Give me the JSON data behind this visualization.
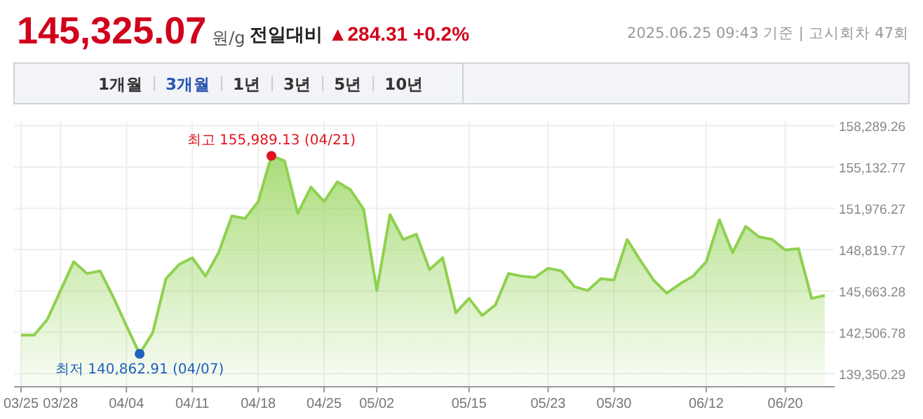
{
  "chart_data": {
    "type": "area",
    "title": "145,325.07원/g",
    "subtitle": "전일대비 ▲284.31 +0.2%",
    "categories": [
      "03/25",
      null,
      null,
      "03/28",
      null,
      null,
      null,
      null,
      "04/04",
      null,
      null,
      null,
      null,
      "04/11",
      null,
      null,
      null,
      null,
      "04/18",
      null,
      null,
      null,
      null,
      "04/25",
      null,
      null,
      null,
      "05/02",
      null,
      null,
      null,
      null,
      null,
      null,
      "05/15",
      null,
      null,
      null,
      null,
      null,
      "05/23",
      null,
      null,
      null,
      null,
      "05/30",
      null,
      null,
      null,
      null,
      null,
      null,
      "06/12",
      null,
      null,
      null,
      null,
      null,
      "06/20",
      null,
      null,
      null
    ],
    "series": [
      {
        "color": "#8fd14f",
        "values": [
          142300,
          142300,
          143500,
          145700,
          147900,
          147000,
          147200,
          145200,
          143000,
          140862.91,
          142500,
          146600,
          147700,
          148200,
          146800,
          148600,
          151400,
          151200,
          152500,
          155989.13,
          155600,
          151600,
          153600,
          152500,
          154000,
          153400,
          151900,
          145700,
          151500,
          149600,
          150000,
          147300,
          148200,
          144000,
          145100,
          143800,
          144600,
          147000,
          146800,
          146700,
          147400,
          147200,
          146000,
          145700,
          146600,
          146500,
          149600,
          148000,
          146500,
          145500,
          146200,
          146800,
          147900,
          151100,
          148600,
          150600,
          149800,
          149600,
          148800,
          148900,
          145100,
          145325.07
        ]
      }
    ],
    "ylim": [
      138350,
      158580
    ],
    "yticks": [
      {
        "value": 139350.29,
        "label": "139,350.29"
      },
      {
        "value": 142506.78,
        "label": "142,506.78"
      },
      {
        "value": 145663.28,
        "label": "145,663.28"
      },
      {
        "value": 148819.77,
        "label": "148,819.77"
      },
      {
        "value": 151976.27,
        "label": "151,976.27"
      },
      {
        "value": 155132.77,
        "label": "155,132.77"
      },
      {
        "value": 158289.26,
        "label": "158,289.26"
      }
    ],
    "grid": true,
    "annotations": [
      {
        "text": "최고 155,989.13 (04/21)",
        "y": 155989.13
      },
      {
        "text": "최저 140,862.91 (04/07)",
        "y": 140862.91
      },
      "2025.06.25 09:43 기준 | 고시회차 47회",
      "1개월",
      "3개월",
      "1년",
      "3년",
      "5년",
      "10년"
    ]
  }
}
